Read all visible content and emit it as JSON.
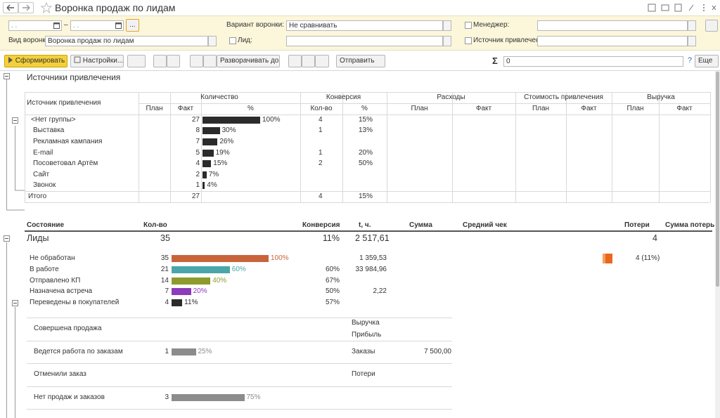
{
  "window": {
    "title": "Воронка продаж по лидам"
  },
  "filters": {
    "date_placeholder": ". .",
    "date_separator": "–",
    "select_period": "...",
    "funnel_type_label": "Вид воронки:",
    "funnel_type_value": "Воронка продаж по лидам",
    "variant_label": "Вариант воронки:",
    "variant_value": "Не сравнивать",
    "lead_label": "Лид:",
    "manager_label": "Менеджер:",
    "source_label": "Источник привлечения:"
  },
  "toolbar": {
    "generate": "Сформировать",
    "settings": "Настройки...",
    "expand": "Разворачивать до",
    "send": "Отправить",
    "sum_sign": "Σ",
    "sum_value": "0",
    "help": "?",
    "more": "Еще"
  },
  "sources": {
    "title": "Источники привлечения",
    "bar_color": "#2b2b2b",
    "columns": {
      "source": "Источник привлечения",
      "quantity": "Количество",
      "conversion": "Конверсия",
      "expenses": "Расходы",
      "cost": "Стоимость привлечения",
      "revenue": "Выручка",
      "plan": "План",
      "fact": "Факт",
      "percent": "%",
      "count": "Кол-во"
    },
    "rows": [
      {
        "name": "<Нет группы>",
        "fact": 27,
        "percent": 100,
        "percent_label": "100%",
        "conv_count": 4,
        "conv_percent": "15%"
      },
      {
        "name": "Выставка",
        "fact": 8,
        "percent": 30,
        "percent_label": "30%",
        "conv_count": 1,
        "conv_percent": "13%"
      },
      {
        "name": "Рекламная кампания",
        "fact": 7,
        "percent": 26,
        "percent_label": "26%"
      },
      {
        "name": "E-mail",
        "fact": 5,
        "percent": 19,
        "percent_label": "19%",
        "conv_count": 1,
        "conv_percent": "20%"
      },
      {
        "name": "Посоветовал Артём",
        "fact": 4,
        "percent": 15,
        "percent_label": "15%",
        "conv_count": 2,
        "conv_percent": "50%"
      },
      {
        "name": "Сайт",
        "fact": 2,
        "percent": 7,
        "percent_label": "7%"
      },
      {
        "name": "Звонок",
        "fact": 1,
        "percent": 4,
        "percent_label": "4%"
      }
    ],
    "total": {
      "name": "Итого",
      "fact": 27,
      "conv_count": 4,
      "conv_percent": "15%"
    }
  },
  "funnel": {
    "columns": {
      "state": "Состояние",
      "count": "Кол-во",
      "conversion": "Конверсия",
      "time": "t, ч.",
      "sum": "Сумма",
      "avg_check": "Средний чек",
      "losses": "Потери",
      "loss_sum": "Сумма потерь"
    },
    "leads": {
      "name": "Лиды",
      "count": 35,
      "conversion": "11%",
      "time": "2 517,61",
      "losses": 4
    },
    "stages": [
      {
        "name": "Не обработан",
        "count": 35,
        "percent": 100,
        "percent_label": "100%",
        "color": "#c8643a",
        "time": "1 359,53",
        "losses": "4 (11%)"
      },
      {
        "name": "В работе",
        "count": 21,
        "percent": 60,
        "percent_label": "60%",
        "color": "#4aa6a8",
        "conversion": "60%",
        "time": "33 984,96"
      },
      {
        "name": "Отправлено КП",
        "count": 14,
        "percent": 40,
        "percent_label": "40%",
        "color": "#8d9a2c",
        "conversion": "67%"
      },
      {
        "name": "Назначена встреча",
        "count": 7,
        "percent": 20,
        "percent_label": "20%",
        "color": "#8b3cba",
        "conversion": "50%",
        "time": "2,22"
      },
      {
        "name": "Переведены в покупателей",
        "count": 4,
        "percent": 11,
        "percent_label": "11%",
        "color": "#2b2b2b",
        "conversion": "57%"
      }
    ],
    "outcome_color": "#8c8c8c",
    "outcomes": [
      {
        "name": "Совершена продажа",
        "metrics": [
          "Выручка",
          "Прибыль"
        ]
      },
      {
        "name": "Ведется работа по заказам",
        "count": 1,
        "percent": 25,
        "percent_label": "25%",
        "metrics": [
          "Заказы"
        ],
        "sum": "7 500,00"
      },
      {
        "name": "Отменили заказ",
        "metrics": [
          "Потери"
        ]
      },
      {
        "name": "Нет продаж и заказов",
        "count": 3,
        "percent": 75,
        "percent_label": "75%"
      }
    ]
  }
}
